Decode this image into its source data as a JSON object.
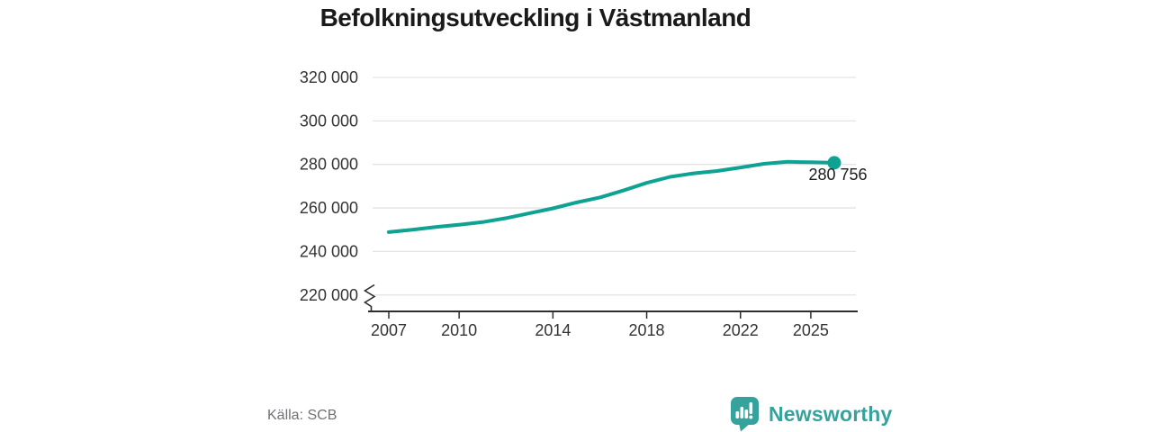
{
  "title": "Befolkningsutveckling i Västmanland",
  "source": "Källa: SCB",
  "branding": {
    "logo_text": "Newsworthy",
    "logo_icon": "bar-chart-speech-bubble-icon"
  },
  "colors": {
    "line": "#0ea293",
    "end_dot": "#0ea293",
    "logo": "#35a39c",
    "title_text": "#1a1a1a",
    "axis_text": "#333333",
    "axis_line": "#2e2e2e",
    "grid": "#e3e3e3",
    "annotation_text": "#1c1c1c",
    "source_text": "#6e7276"
  },
  "chart_data": {
    "type": "line",
    "title": "Befolkningsutveckling i Västmanland",
    "x": [
      2007,
      2008,
      2009,
      2010,
      2011,
      2012,
      2013,
      2014,
      2015,
      2016,
      2017,
      2018,
      2019,
      2020,
      2021,
      2022,
      2023,
      2024,
      2025,
      2026
    ],
    "values": [
      248900,
      250000,
      251200,
      252300,
      253500,
      255300,
      257600,
      259800,
      262500,
      264800,
      268000,
      271500,
      274300,
      275900,
      277000,
      278600,
      280300,
      281200,
      281000,
      280756
    ],
    "ylim": [
      220000,
      320000
    ],
    "yticks": [
      320000,
      300000,
      280000,
      260000,
      240000,
      220000
    ],
    "ytick_labels": [
      "320 000",
      "300 000",
      "280 000",
      "260 000",
      "240 000",
      "220 000"
    ],
    "xticks": [
      2007,
      2010,
      2014,
      2018,
      2022,
      2025
    ],
    "xtick_labels": [
      "2007",
      "2010",
      "2014",
      "2018",
      "2022",
      "2025"
    ],
    "grid": "horizontal",
    "axis_break": true,
    "legend": "none",
    "end_value": 280756,
    "end_label": "280 756"
  }
}
